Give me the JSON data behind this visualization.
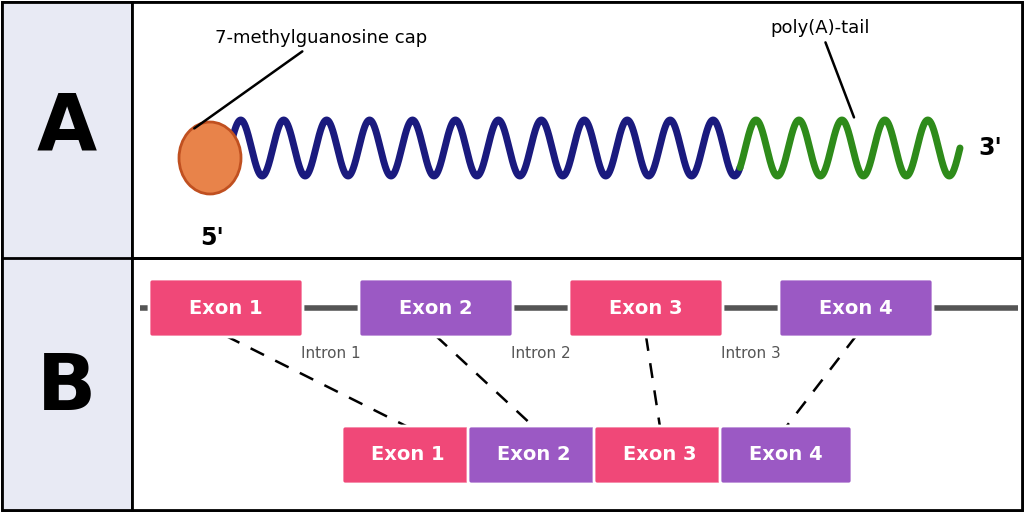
{
  "bg_color": "#e8eaf4",
  "white": "#ffffff",
  "label_A": "A",
  "label_B": "B",
  "cap_label": "7-methylguanosine cap",
  "tail_label": "poly(A)-tail",
  "five_prime": "5'",
  "three_prime": "3'",
  "wave_color_blue": "#1a1a7e",
  "wave_color_green": "#2e8b1a",
  "cap_face": "#e8834a",
  "cap_edge": "#c05020",
  "exon1_color": "#f04878",
  "exon2_color": "#9b59c4",
  "exon3_color": "#f04878",
  "exon4_color": "#9b59c4",
  "line_color": "#555555",
  "intron_label_color": "#555555",
  "exons_top": [
    "Exon 1",
    "Exon 2",
    "Exon 3",
    "Exon 4"
  ],
  "exons_bottom": [
    "Exon 1",
    "Exon 2",
    "Exon 3",
    "Exon 4"
  ],
  "introns": [
    "Intron 1",
    "Intron 2",
    "Intron 3"
  ],
  "wave_freq": 17,
  "wave_amp": 0.055,
  "wave_lw": 5.0
}
